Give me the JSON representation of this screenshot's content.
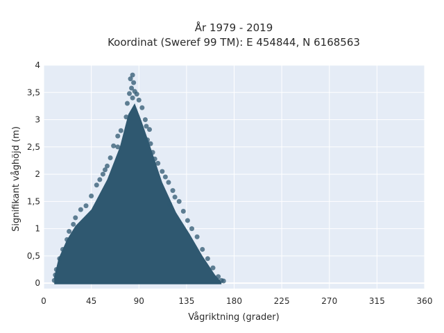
{
  "chart_data": {
    "type": "scatter",
    "title": "År 1979 - 2019",
    "subtitle": "Koordinat (Sweref 99 TM): E 454844, N 6168563",
    "xlabel": "Vågriktning (grader)",
    "ylabel": "Signifikant våghöjd (m)",
    "xlim": [
      0,
      360
    ],
    "ylim": [
      -0.1,
      4
    ],
    "x_ticks": [
      0,
      45,
      90,
      135,
      180,
      225,
      270,
      315,
      360
    ],
    "x_tick_labels": [
      "0",
      "45",
      "90",
      "135",
      "180",
      "225",
      "270",
      "315",
      "360"
    ],
    "y_ticks": [
      0,
      0.5,
      1,
      1.5,
      2,
      2.5,
      3,
      3.5,
      4
    ],
    "y_tick_labels": [
      "0",
      "0,5",
      "1",
      "1,5",
      "2",
      "2,5",
      "3",
      "3,5",
      "4"
    ],
    "grid": true,
    "background": "#e5ecf6",
    "marker_color": "#2f5870",
    "series": [
      {
        "values": [
          [
            84,
            3.82
          ],
          [
            82,
            3.75
          ],
          [
            85,
            3.68
          ],
          [
            83,
            3.58
          ],
          [
            86,
            3.52
          ],
          [
            81,
            3.48
          ],
          [
            88,
            3.47
          ],
          [
            84,
            3.4
          ],
          [
            90,
            3.36
          ],
          [
            79,
            3.3
          ],
          [
            93,
            3.22
          ],
          [
            78,
            3.05
          ],
          [
            96,
            3.0
          ],
          [
            97,
            2.88
          ],
          [
            100,
            2.82
          ],
          [
            73,
            2.8
          ],
          [
            70,
            2.7
          ],
          [
            98,
            2.63
          ],
          [
            101,
            2.56
          ],
          [
            66,
            2.52
          ],
          [
            103,
            2.4
          ],
          [
            70,
            2.5
          ],
          [
            63,
            2.3
          ],
          [
            105,
            2.28
          ],
          [
            108,
            2.2
          ],
          [
            60,
            2.15
          ],
          [
            58,
            2.08
          ],
          [
            112,
            2.05
          ],
          [
            115,
            1.95
          ],
          [
            53,
            1.9
          ],
          [
            118,
            1.85
          ],
          [
            50,
            1.8
          ],
          [
            56,
            2.0
          ],
          [
            124,
            1.58
          ],
          [
            45,
            1.6
          ],
          [
            128,
            1.5
          ],
          [
            40,
            1.42
          ],
          [
            35,
            1.35
          ],
          [
            132,
            1.32
          ],
          [
            30,
            1.2
          ],
          [
            136,
            1.15
          ],
          [
            28,
            1.08
          ],
          [
            140,
            1.0
          ],
          [
            24,
            0.95
          ],
          [
            145,
            0.85
          ],
          [
            22,
            0.8
          ],
          [
            150,
            0.62
          ],
          [
            18,
            0.62
          ],
          [
            155,
            0.45
          ],
          [
            15,
            0.45
          ],
          [
            160,
            0.28
          ],
          [
            12,
            0.25
          ],
          [
            165,
            0.12
          ],
          [
            168,
            0.05
          ],
          [
            170,
            0.04
          ],
          [
            10,
            0.05
          ],
          [
            12,
            0.1
          ],
          [
            11,
            0.15
          ],
          [
            119,
            1.45
          ],
          [
            122,
            1.7
          ]
        ]
      }
    ]
  }
}
